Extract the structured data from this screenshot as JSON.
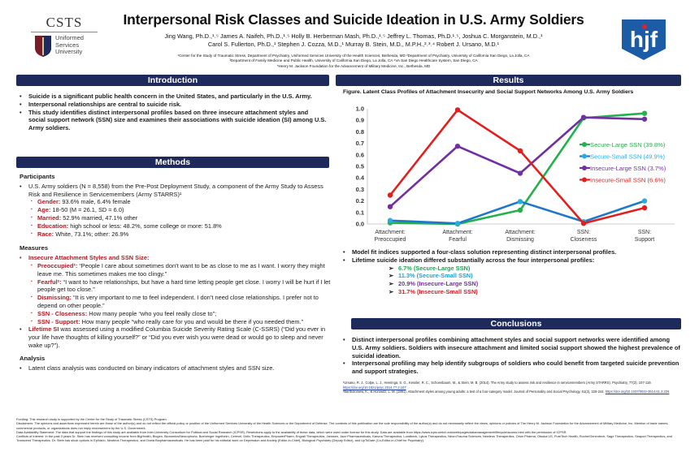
{
  "header": {
    "title": "Interpersonal Risk Classes and Suicide Ideation in U.S. Army Soldiers",
    "authors_line1": "Jing Wang, Ph.D.,¹˒⁵ James A. Naifeh, Ph.D.,¹˒⁵ Holly B. Herberman Mash, Ph.D.,¹˒⁵ Jeffrey L. Thomas, Ph.D.¹˒⁵, Joshua C. Morganstein, M.D.,¹",
    "authors_line2": "Carol S. Fullerton, Ph.D.,¹ Stephen J. Cozza, M.D.,¹ Murray B. Stein, M.D., M.P.H.,²˒³˒⁴ Robert J. Ursano, M.D.¹",
    "affil1": "¹Center for the Study of Traumatic Stress, Department of Psychiatry, Uniformed Services University of the Health Sciences, Bethesda, MD ²Department of Psychiatry, University of California San Diego, La Jolla, CA",
    "affil2": "³Department of Family Medicine and Public Health, University of California San Diego, La Jolla, CA ⁴VA San Diego Healthcare System, San Diego, CA",
    "affil3": "⁵Henry M. Jackson Foundation for the Advancement of Military Medicine, Inc., Bethesda, MD",
    "logo_left": {
      "name": "CSTS",
      "sub1": "Uniformed",
      "sub2": "Services",
      "sub3": "University"
    },
    "logo_right": {
      "name": "hjf"
    }
  },
  "introduction": {
    "heading": "Introduction",
    "bullets": [
      "Suicide is a significant public health concern in the United States, and particularly in the U.S. Army.",
      "Interpersonal relationships are central to suicide risk.",
      "This study identifies distinct interpersonal profiles based on three insecure attachment styles and social support network (SSN) size and examines their associations with suicide ideation (SI) among U.S. Army soldiers."
    ]
  },
  "methods": {
    "heading": "Methods",
    "participants_heading": "Participants",
    "participants_bullet": "U.S. Army soldiers (N = 8,558) from the Pre-Post Deployment Study, a component of the Army Study to Assess Risk and Resilience in Servicemembers (Army STARRS)¹",
    "demographics": [
      {
        "label": "Gender:",
        "text": " 93.6% male, 6.4% female"
      },
      {
        "label": "Age:",
        "text": " 18-50 (M = 26.1, SD = 6.0)"
      },
      {
        "label": "Married:",
        "text": " 52.9% married, 47.1% other"
      },
      {
        "label": "Education:",
        "text": " high school or less: 48.2%, some college or more: 51.8%"
      },
      {
        "label": "Race:",
        "text": " White, 73.1%; other: 26.9%"
      }
    ],
    "measures_heading": "Measures",
    "measures_bullet": "Insecure Attachment Styles and SSN Size:",
    "measures": [
      {
        "label": "Preoccupied²:",
        "text": " “People I care about sometimes don’t want to be as close to me as I want. I worry they might leave me. This sometimes makes me too clingy.”"
      },
      {
        "label": "Fearful²:",
        "text": " “I want to have relationships, but have a hard time letting people get close. I worry I will be hurt if I let people get too close.”"
      },
      {
        "label": "Dismissing:",
        "text": " “It is very important to me to feel independent. I don’t need close relationships. I prefer not to depend on other people.”"
      },
      {
        "label": "SSN - Closeness:",
        "text": " How many people “who you feel really close to”;"
      },
      {
        "label": "SSN - Support:",
        "text": " How many people “who really care for you and would be there if you needed them.”"
      }
    ],
    "si_label": "Lifetime SI",
    "si_text": " was assessed using a modified Columbia Suicide Severity Rating Scale (C-SSRS) (“Did you ever in your life have thoughts of killing yourself?” or “Did you ever wish you were dead or would go to sleep and never wake up?”).",
    "analysis_heading": "Analysis",
    "analysis_bullet": "Latent class analysis was conducted on binary indicators of attachment styles and SSN size."
  },
  "results": {
    "heading": "Results",
    "bullets": [
      "Model fit indices supported a four-class solution representing distinct interpersonal profiles.",
      "Lifetime suicide ideation differed substantially across the four interpersonal profiles:"
    ],
    "si_rates": [
      {
        "text": "6.7% (Secure-Large SSN)",
        "color": "#22a35a"
      },
      {
        "text": "11.3% (Secure-Small SSN)",
        "color": "#1fa2d6"
      },
      {
        "text": "20.9% (Insecure-Large SSN)",
        "color": "#7030a0"
      },
      {
        "text": "31.7% (Insecure-Small SSN)",
        "color": "#d11f26"
      }
    ]
  },
  "chart_data": {
    "type": "line",
    "title": "Figure. Latent Class Profiles of Attachment Insecurity and Social Support Networks Among U.S. Army Soldiers",
    "categories": [
      [
        "Attachment:",
        "Preoccupied"
      ],
      [
        "Attachment:",
        "Fearful"
      ],
      [
        "Attachment:",
        "Dismissing"
      ],
      [
        "SSN:",
        "Closeness"
      ],
      [
        "SSN:",
        "Support"
      ]
    ],
    "ylim": [
      0,
      1.0
    ],
    "yticks": [
      "0.0",
      "0.1",
      "0.2",
      "0.3",
      "0.4",
      "0.5",
      "0.6",
      "0.7",
      "0.8",
      "0.9",
      "1.0"
    ],
    "grid": false,
    "legend_position": "right",
    "series": [
      {
        "name": "Secure-Large SSN (39.8%)",
        "color": "#22b14c",
        "values": [
          0.01,
          0.0,
          0.12,
          0.92,
          0.96
        ]
      },
      {
        "name": "Secure-Small SSN (49.9%)",
        "color": "#1f78c8",
        "marker": "#29abe2",
        "values": [
          0.03,
          0.005,
          0.195,
          0.02,
          0.2
        ]
      },
      {
        "name": "Insecure-Large SSN (3.7%)",
        "color": "#7030a0",
        "values": [
          0.15,
          0.675,
          0.44,
          0.925,
          0.91
        ]
      },
      {
        "name": "Insecure-Small SSN (6.6%)",
        "color": "#e41e1e",
        "values": [
          0.25,
          0.99,
          0.635,
          0.005,
          0.14
        ]
      }
    ]
  },
  "conclusions": {
    "heading": "Conclusions",
    "bullets": [
      "Distinct interpersonal profiles combining attachment styles and social support networks were identified among U.S. Army soldiers.  Soldiers with insecure attachment and limited social support showed the highest prevalence of suicidal ideation.",
      "Interpersonal profiling may help identify subgroups of soldiers who could benefit from targeted suicide prevention and support strategies."
    ],
    "ref1": "¹Ursano, R. J., Colpe, L. J., Heeringa, S. G., Kessler, R. C., Schoenbaum, M., & Stein, M. B. (2014). The Army study to assess risk and resilience in servicemembers (Army STARRS). Psychiatry, 77(2), 107-119. ",
    "ref1_link": "https://doi.org/10.1521/psyc.2014.77.2.107",
    "ref2": "²Bartholomew, K., & Horowitz, L. M. (1991). Attachment styles among young adults: a test of a four-category model. Journal of Personality and Social Psychology, 61(2), 226-244. ",
    "ref2_link": "https://doi.org/10.1037/0022-3514.61.2.226"
  },
  "footer": {
    "funding": "Funding: This research study is supported by the Center for the Study of Traumatic Stress (CSTS) Program.",
    "disclaimer": "Disclaimers: The opinions and assertions expressed herein are those of the author(s) and do not reflect the official policy or position of the Uniformed Services University of the Health Sciences or the Department of Defense. The contents of this publication are the sole responsibility of the author(s) and do not necessarily reflect the views, opinions or policies of The Henry M. Jackson Foundation for the Advancement of Military Medicine, Inc. Mention of trade names, commercial products, or organizations does not imply endorsement by the U.S. Government.",
    "data": "Data Availability Statement: The data that support the findings of this study are available from Inter-University Consortium for Political and Social Research (ICPSR). Restrictions apply to the availability of these data, which were used under license for this study. Data are available from https://www.icpsr.umich.edu/web/pages/datamanagement/lifecycle/access.html with the permission of ICPSR.",
    "conflicts": "Conflicts of Interest: In the past 3 years Dr. Stein has received consulting income from BigHealth, Biogen, Bionomics/Neurophoria, Boehringer Ingelheim, Cerevel, Delix Therapeutics, EmpowerPharm, Engrail Therapeutics, Janssen, Jazz Pharmaceuticals, Karuna Therapeutics, Lundbeck, Lykos Therapeutics, NeuroTrauma Sciences, Newleos Therapeutics, Orion Pharma, Otsuka US, PureTech Health, Roche/Genentech, Sage Therapeutics, Seaport Therapeutics, and Transcend Therapeutics. Dr. Stein has stock options in EpiVario, Newleos Therapeutics, and Oxeia Biopharmaceuticals. He has been paid for his editorial work on Depression and Anxiety (Editor-in-Chief), Biological Psychiatry (Deputy Editor), and UpToDate (Co-Editor-in-Chief for Psychiatry)."
  }
}
